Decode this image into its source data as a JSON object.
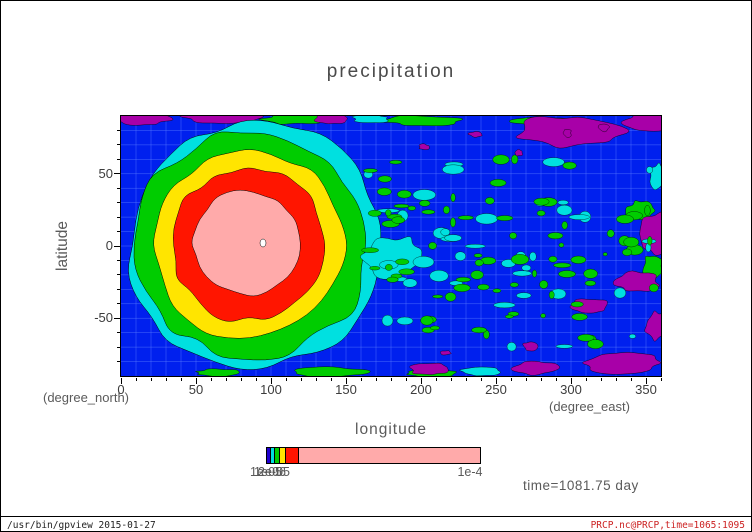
{
  "chart_data": {
    "type": "contour",
    "title": "precipitation",
    "xlabel": "longitude",
    "ylabel": "latitude",
    "x_axis_unit": "(degree_east)",
    "y_axis_unit": "(degree_north)",
    "xlim": [
      0,
      360
    ],
    "ylim": [
      -90,
      90
    ],
    "xticks": [
      0,
      50,
      100,
      150,
      200,
      250,
      300,
      350
    ],
    "yticks": [
      -50,
      0,
      50
    ],
    "minor_tick_step": 10,
    "grid": true,
    "annotation": "time=1081.75 day",
    "levels": [
      "1e-06",
      "1e-05",
      "2e-05",
      "5e-05",
      "1e-4"
    ],
    "colorbar": {
      "left_labels_overlapping": [
        "1e-05",
        "1e-06",
        "2e-05"
      ],
      "label_right": "1e-4",
      "segments": [
        {
          "color": "#2000d0",
          "width": 3
        },
        {
          "color": "#00dfdf",
          "width": 3
        },
        {
          "color": "#00cc00",
          "width": 4
        },
        {
          "color": "#ffe500",
          "width": 5
        },
        {
          "color": "#ff1500",
          "width": 13
        },
        {
          "color": "#ffaaaa",
          "width": 185
        }
      ]
    },
    "palette": {
      "lowest_magenta": "#a800a8",
      "blue": "#0020ee",
      "grid_line": "#5b7dff",
      "cyan": "#00e0e0",
      "green": "#00cc00",
      "yellow": "#ffe500",
      "red": "#ff1500",
      "pink": "#ffaaaa",
      "peak_white": "#ffffff",
      "contour": "#000000"
    }
  },
  "colors": {
    "label_text": "#5a5a5a",
    "tick_text": "#3c3c3c",
    "footer_right_red": "#cc2222"
  },
  "footer": {
    "left": "/usr/bin/gpview  2015-01-27",
    "right": "PRCP.nc@PRCP,time=1065:1095"
  }
}
